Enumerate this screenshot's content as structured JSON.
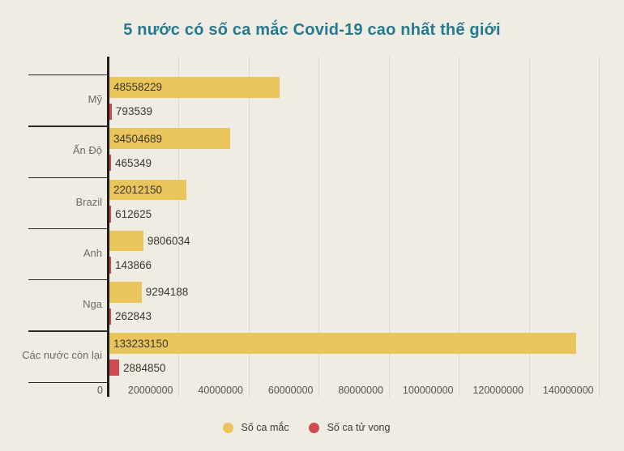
{
  "chart": {
    "title": "5 nước có số ca mắc Covid-19 cao nhất thế giới",
    "legend": [
      {
        "label": "Số ca mắc",
        "color": "#EAC55C"
      },
      {
        "label": "Số ca tử vong",
        "color": "#CD4B4E"
      }
    ]
  },
  "chart_data": {
    "type": "bar",
    "orientation": "horizontal",
    "title": "5 nước có số ca mắc Covid-19 cao nhất thế giới",
    "categories": [
      "Mỹ",
      "Ấn Độ",
      "Brazil",
      "Anh",
      "Nga",
      "Các nước còn lại"
    ],
    "series": [
      {
        "name": "Số ca mắc",
        "color": "#EAC55C",
        "values": [
          48558229,
          34504689,
          22012150,
          9806034,
          9294188,
          133233150
        ]
      },
      {
        "name": "Số ca tử vong",
        "color": "#CD4B4E",
        "values": [
          793539,
          465349,
          612625,
          143866,
          262843,
          2884850
        ]
      }
    ],
    "x_ticks": [
      "0",
      "20000000",
      "40000000",
      "60000000",
      "80000000",
      "100000000",
      "120000000",
      "140000000"
    ],
    "xlim": [
      0,
      140000000
    ],
    "grid": "vertical",
    "data_labels": true,
    "legend_position": "bottom",
    "colors": {
      "background": "#EFECE3",
      "title": "#26798F",
      "axis": "#1F1E1B",
      "gridline": "#DCD8CE",
      "category_text": "#6F6B62",
      "value_text": "#3A372F",
      "tick_text": "#57534B"
    }
  }
}
